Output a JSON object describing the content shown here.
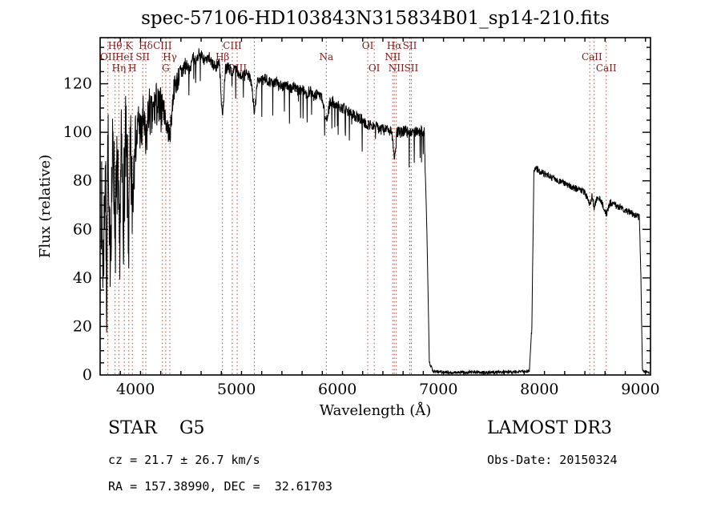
{
  "title": "spec-57106-HD103843N315834B01_sp14-210.fits",
  "footer": {
    "left": {
      "line1": "STAR    G5",
      "line2": "cz = 21.7 ± 26.7 km/s",
      "line3": "RA = 157.38990, DEC =  32.61703"
    },
    "right": {
      "line1": "LAMOST DR3",
      "line2": "Obs-Date: 20150324"
    }
  },
  "chart_data": {
    "type": "line",
    "title": "spec-57106-HD103843N315834B01_sp14-210.fits",
    "xlabel": "Wavelength (Å)",
    "ylabel": "Flux (relative)",
    "xlim": [
      3650,
      9100
    ],
    "ylim": [
      0,
      139
    ],
    "x_ticks": [
      4000,
      5000,
      6000,
      7000,
      8000,
      9000
    ],
    "x_minor_step": 200,
    "y_ticks": [
      0,
      20,
      40,
      60,
      80,
      100,
      120
    ],
    "y_minor_step": 5,
    "grid": false,
    "legend": "none",
    "line_color": "#000000",
    "axis_color": "#000000",
    "marker_line_color": "#a14a3a",
    "marker_label_color": "#7b1b1b",
    "spectral_marker_wavelengths": [
      3727,
      3798,
      3835,
      3889,
      3934,
      3969,
      4072,
      4102,
      4267,
      4300,
      4340,
      4861,
      4959,
      5007,
      5177,
      5890,
      6300,
      6364,
      6548,
      6563,
      6583,
      6716,
      6731,
      8498,
      8542,
      8662
    ],
    "spectral_labels": [
      {
        "label": "Hθ",
        "wavelength": 3798,
        "row": 0
      },
      {
        "label": "K",
        "wavelength": 3934,
        "row": 0
      },
      {
        "label": "Hδ",
        "wavelength": 4102,
        "row": 0
      },
      {
        "label": "CIII",
        "wavelength": 4267,
        "row": 0
      },
      {
        "label": "CIII",
        "wavelength": 4959,
        "row": 0
      },
      {
        "label": "OI",
        "wavelength": 6300,
        "row": 0
      },
      {
        "label": "Hα",
        "wavelength": 6563,
        "row": 0
      },
      {
        "label": "SII",
        "wavelength": 6716,
        "row": 0
      },
      {
        "label": "OII",
        "wavelength": 3727,
        "row": 1
      },
      {
        "label": "HeI",
        "wavelength": 3889,
        "row": 1
      },
      {
        "label": "SII",
        "wavelength": 4072,
        "row": 1
      },
      {
        "label": "Hγ",
        "wavelength": 4340,
        "row": 1
      },
      {
        "label": "Hβ",
        "wavelength": 4861,
        "row": 1
      },
      {
        "label": "Na",
        "wavelength": 5890,
        "row": 1
      },
      {
        "label": "NII",
        "wavelength": 6548,
        "row": 1
      },
      {
        "label": "CaII",
        "wavelength": 8520,
        "row": 1
      },
      {
        "label": "Hη",
        "wavelength": 3835,
        "row": 2
      },
      {
        "label": "H",
        "wavelength": 3969,
        "row": 2
      },
      {
        "label": "G",
        "wavelength": 4300,
        "row": 2
      },
      {
        "label": "OIII",
        "wavelength": 5007,
        "row": 2
      },
      {
        "label": "OI",
        "wavelength": 6364,
        "row": 2
      },
      {
        "label": "NII",
        "wavelength": 6583,
        "row": 2
      },
      {
        "label": "SII",
        "wavelength": 6731,
        "row": 2
      },
      {
        "label": "CaII",
        "wavelength": 8662,
        "row": 2
      }
    ],
    "envelope": [
      [
        3660,
        75
      ],
      [
        3680,
        42
      ],
      [
        3700,
        88
      ],
      [
        3715,
        32
      ],
      [
        3727,
        100
      ],
      [
        3740,
        46
      ],
      [
        3760,
        70
      ],
      [
        3780,
        95
      ],
      [
        3800,
        60
      ],
      [
        3820,
        85
      ],
      [
        3840,
        52
      ],
      [
        3860,
        90
      ],
      [
        3880,
        66
      ],
      [
        3900,
        95
      ],
      [
        3920,
        80
      ],
      [
        3934,
        56
      ],
      [
        3950,
        90
      ],
      [
        3969,
        70
      ],
      [
        3990,
        100
      ],
      [
        4010,
        95
      ],
      [
        4030,
        105
      ],
      [
        4060,
        98
      ],
      [
        4080,
        108
      ],
      [
        4102,
        92
      ],
      [
        4130,
        110
      ],
      [
        4160,
        105
      ],
      [
        4200,
        112
      ],
      [
        4240,
        108
      ],
      [
        4267,
        112
      ],
      [
        4300,
        105
      ],
      [
        4340,
        98
      ],
      [
        4380,
        118
      ],
      [
        4420,
        122
      ],
      [
        4460,
        125
      ],
      [
        4500,
        128
      ],
      [
        4540,
        126
      ],
      [
        4570,
        131
      ],
      [
        4600,
        129
      ],
      [
        4630,
        133
      ],
      [
        4660,
        131
      ],
      [
        4700,
        129
      ],
      [
        4730,
        131
      ],
      [
        4760,
        128
      ],
      [
        4800,
        127
      ],
      [
        4830,
        129
      ],
      [
        4861,
        105
      ],
      [
        4890,
        126
      ],
      [
        4920,
        127
      ],
      [
        4950,
        125
      ],
      [
        4990,
        126
      ],
      [
        5030,
        124
      ],
      [
        5070,
        123
      ],
      [
        5110,
        124
      ],
      [
        5150,
        121
      ],
      [
        5177,
        107
      ],
      [
        5210,
        122
      ],
      [
        5250,
        121
      ],
      [
        5290,
        122
      ],
      [
        5330,
        121
      ],
      [
        5370,
        120
      ],
      [
        5410,
        121
      ],
      [
        5450,
        119
      ],
      [
        5490,
        120
      ],
      [
        5530,
        118
      ],
      [
        5570,
        119
      ],
      [
        5610,
        117
      ],
      [
        5650,
        118
      ],
      [
        5690,
        116
      ],
      [
        5730,
        117
      ],
      [
        5770,
        115
      ],
      [
        5810,
        116
      ],
      [
        5850,
        114
      ],
      [
        5890,
        104
      ],
      [
        5930,
        113
      ],
      [
        5970,
        112
      ],
      [
        6010,
        111
      ],
      [
        6050,
        110
      ],
      [
        6090,
        109
      ],
      [
        6130,
        108
      ],
      [
        6170,
        107
      ],
      [
        6210,
        106
      ],
      [
        6250,
        105
      ],
      [
        6300,
        103
      ],
      [
        6350,
        103
      ],
      [
        6400,
        102
      ],
      [
        6450,
        101
      ],
      [
        6500,
        101
      ],
      [
        6540,
        100
      ],
      [
        6563,
        88
      ],
      [
        6590,
        100
      ],
      [
        6630,
        100
      ],
      [
        6670,
        101
      ],
      [
        6710,
        100
      ],
      [
        6750,
        101
      ],
      [
        6790,
        100
      ],
      [
        6830,
        101
      ],
      [
        6860,
        100
      ],
      [
        6885,
        60
      ],
      [
        6910,
        5
      ],
      [
        6950,
        1.5
      ],
      [
        7100,
        1
      ],
      [
        7300,
        1.2
      ],
      [
        7500,
        1
      ],
      [
        7700,
        1.2
      ],
      [
        7900,
        1.5
      ],
      [
        7925,
        20
      ],
      [
        7945,
        84
      ],
      [
        7970,
        85
      ],
      [
        8000,
        84
      ],
      [
        8050,
        83
      ],
      [
        8100,
        82
      ],
      [
        8150,
        81
      ],
      [
        8200,
        80
      ],
      [
        8250,
        79
      ],
      [
        8300,
        78
      ],
      [
        8350,
        77
      ],
      [
        8400,
        76
      ],
      [
        8450,
        75.5
      ],
      [
        8498,
        70
      ],
      [
        8520,
        74
      ],
      [
        8542,
        69
      ],
      [
        8570,
        73
      ],
      [
        8610,
        72
      ],
      [
        8662,
        66
      ],
      [
        8700,
        71
      ],
      [
        8750,
        70
      ],
      [
        8800,
        69
      ],
      [
        8850,
        68
      ],
      [
        8900,
        67
      ],
      [
        8950,
        66
      ],
      [
        8990,
        65
      ],
      [
        9005,
        40
      ],
      [
        9020,
        2
      ],
      [
        9080,
        1
      ]
    ],
    "noise_regions": [
      [
        3650,
        3990,
        22
      ],
      [
        3990,
        4260,
        10
      ],
      [
        4260,
        4500,
        5
      ],
      [
        4500,
        6870,
        2.3
      ],
      [
        6870,
        7918,
        0.7
      ],
      [
        7918,
        9005,
        1.4
      ],
      [
        9005,
        9100,
        0.5
      ]
    ],
    "dip_spikes": {
      "from": 4500,
      "to": 6860,
      "prob": 0.05,
      "max_depth": 14
    },
    "sample_step": 2.4,
    "random_seed": 7
  }
}
